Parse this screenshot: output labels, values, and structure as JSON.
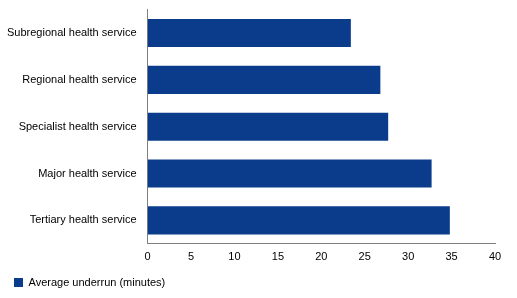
{
  "chart_data": {
    "type": "bar",
    "orientation": "horizontal",
    "categories": [
      "Subregional health service",
      "Regional health service",
      "Specialist health service",
      "Major health service",
      "Tertiary health service"
    ],
    "series": [
      {
        "name": "Average underrun (minutes)",
        "color": "#0b3c8c",
        "values": [
          23.4,
          26.8,
          27.7,
          32.7,
          34.8
        ]
      }
    ],
    "xlim": [
      0,
      40
    ],
    "xticks": [
      0,
      5,
      10,
      15,
      20,
      25,
      30,
      35,
      40
    ],
    "grid": false,
    "legend": "bottom"
  }
}
